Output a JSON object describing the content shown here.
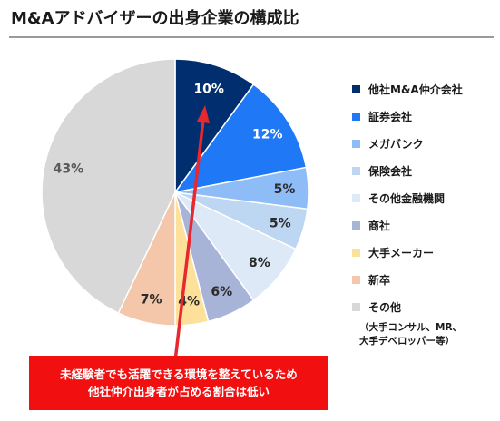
{
  "title": "M&Aアドバイザーの出身企業の構成比",
  "chart_data": {
    "type": "pie",
    "title": "M&Aアドバイザーの出身企業の構成比",
    "slices": [
      {
        "label": "他社M&A仲介会社",
        "value": 10,
        "data_label": "10%",
        "color": "#002e6e",
        "label_color": "#ffffff"
      },
      {
        "label": "証券会社",
        "value": 12,
        "data_label": "12%",
        "color": "#1f78f5",
        "label_color": "#ffffff"
      },
      {
        "label": "メガバンク",
        "value": 5,
        "data_label": "5%",
        "color": "#8ebcf7",
        "label_color": "#2b2b2b"
      },
      {
        "label": "保険会社",
        "value": 5,
        "data_label": "5%",
        "color": "#bdd6f2",
        "label_color": "#2b2b2b"
      },
      {
        "label": "その他金融機関",
        "value": 8,
        "data_label": "8%",
        "color": "#dde9f6",
        "label_color": "#2b2b2b"
      },
      {
        "label": "商社",
        "value": 6,
        "data_label": "6%",
        "color": "#a7b4d8",
        "label_color": "#2b2b2b"
      },
      {
        "label": "大手メーカー",
        "value": 4,
        "data_label": "4%",
        "color": "#fde19b",
        "label_color": "#2b2b2b"
      },
      {
        "label": "新卒",
        "value": 7,
        "data_label": "7%",
        "color": "#f4c6aa",
        "label_color": "#2b2b2b"
      },
      {
        "label": "その他",
        "value": 43,
        "data_label": "43%",
        "color": "#d8d8d8",
        "label_color": "#595959"
      }
    ],
    "legend_position": "right",
    "legend_note": [
      "（大手コンサル、MR、",
      "大手デベロッパー等）"
    ]
  },
  "callout": {
    "lines": [
      "未経験者でも活躍できる環境を整えているため",
      "他社仲介出身者が占める割合は低い"
    ],
    "color": "#f20f0f",
    "arrow_color": "#e8272f"
  }
}
